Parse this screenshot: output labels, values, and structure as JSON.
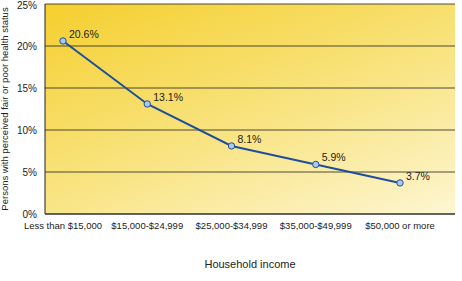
{
  "chart_data": {
    "type": "line",
    "categories": [
      "Less than $15,000",
      "$15,000-$24,999",
      "$25,000-$34,999",
      "$35,000-$49,999",
      "$50,000 or more"
    ],
    "values": [
      20.6,
      13.1,
      8.1,
      5.9,
      3.7
    ],
    "value_labels": [
      "20.6%",
      "13.1%",
      "8.1%",
      "5.9%",
      "3.7%"
    ],
    "color": "#1f4e9c",
    "marker": "circle",
    "data_labels": true,
    "grid": true,
    "ylim": [
      0,
      25
    ],
    "yticks": [
      {
        "value": 0,
        "label": "0%"
      },
      {
        "value": 5,
        "label": "5%"
      },
      {
        "value": 10,
        "label": "10%"
      },
      {
        "value": 15,
        "label": "15%"
      },
      {
        "value": 20,
        "label": "20%"
      },
      {
        "value": 25,
        "label": "25%"
      }
    ],
    "xlabel": "Household income",
    "ylabel": "Persons with perceived fair or poor health status"
  }
}
